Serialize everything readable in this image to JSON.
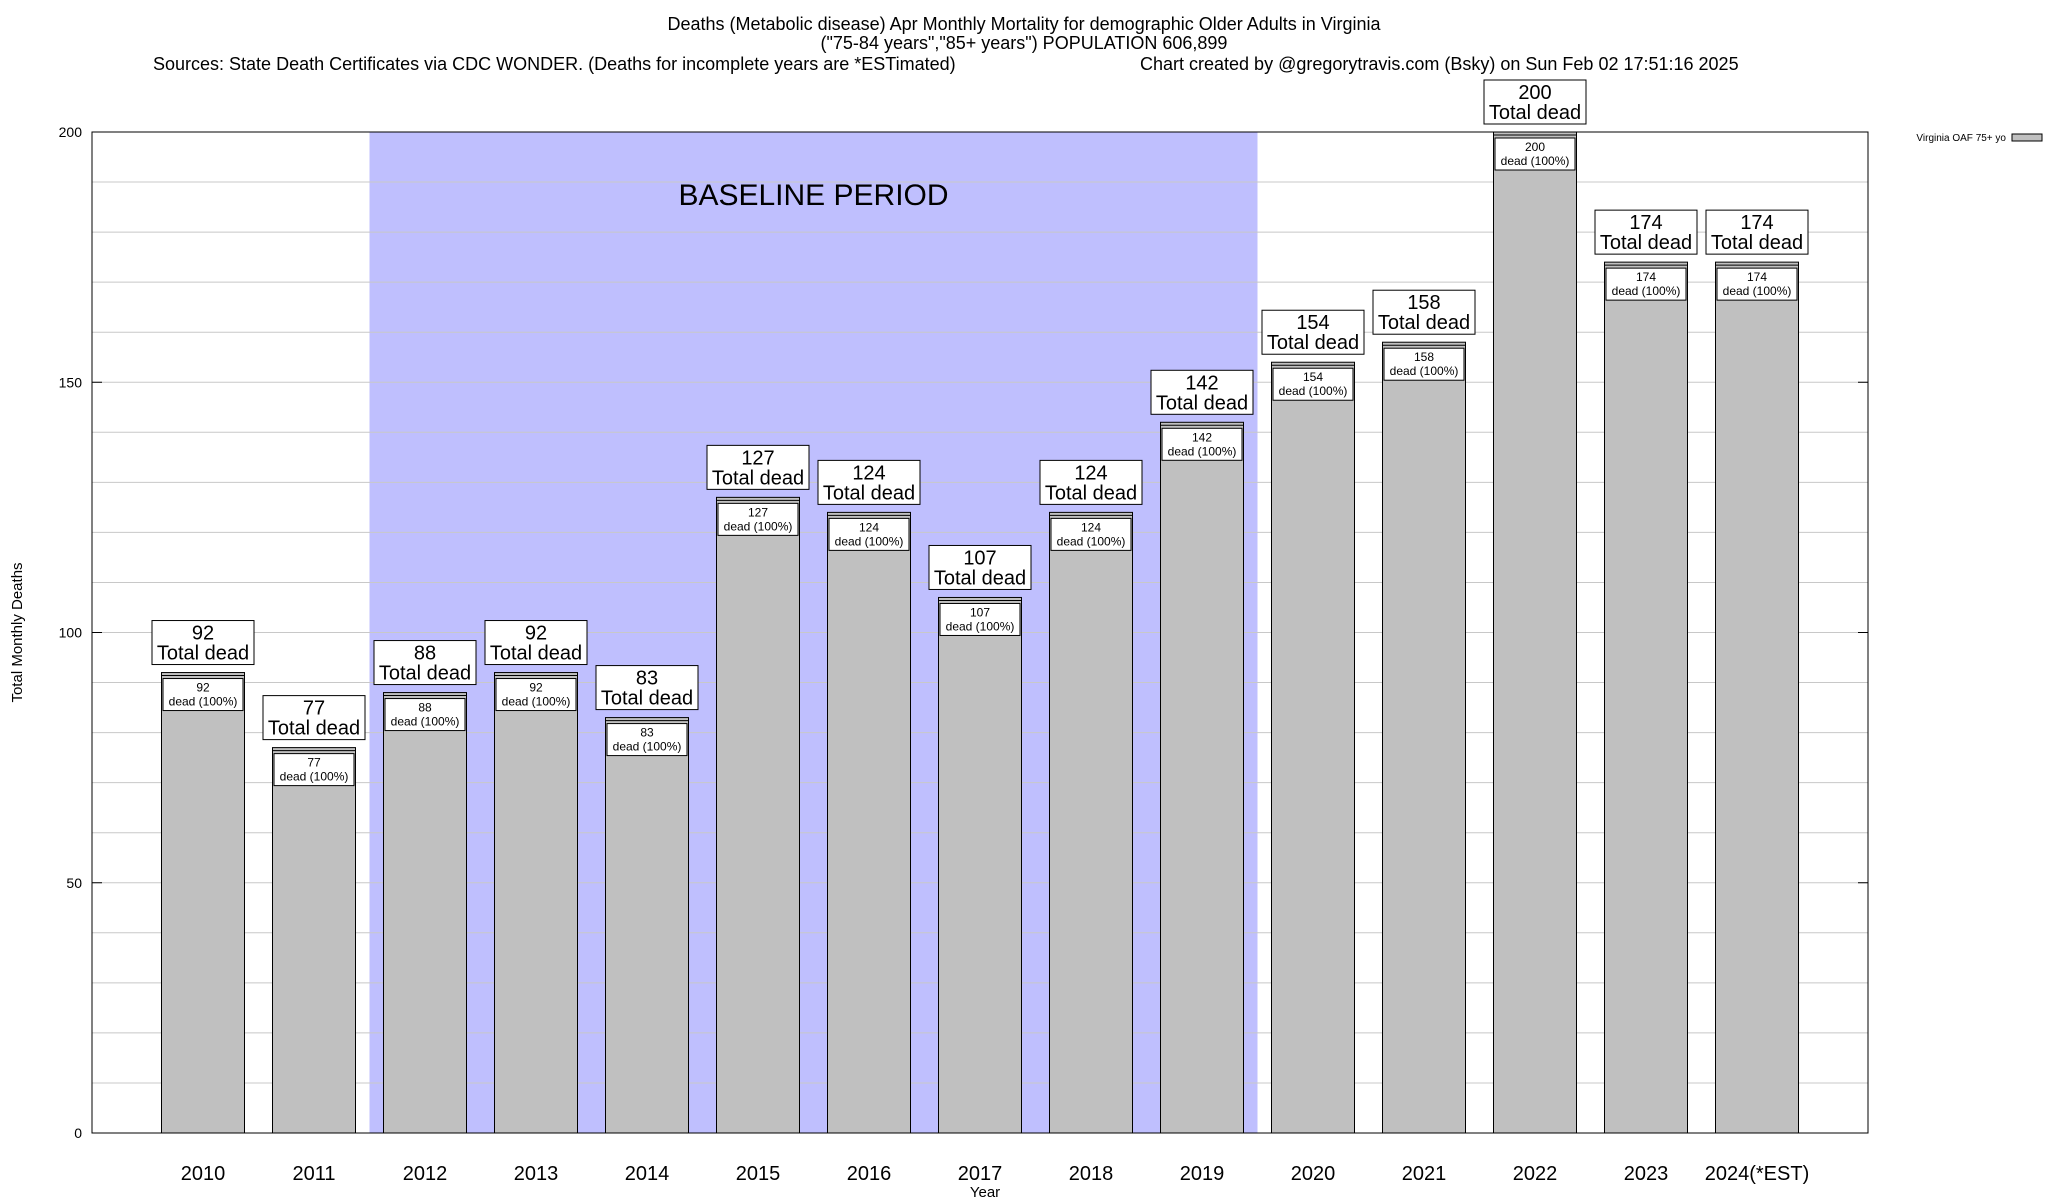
{
  "header": {
    "title_line1": "Deaths (Metabolic disease) Apr Monthly Mortality for demographic Older Adults in Virginia",
    "title_line2": "(\"75-84 years\",\"85+ years\") POPULATION 606,899",
    "sources": "Sources: State Death Certificates via CDC WONDER. (Deaths for incomplete years are *ESTimated)",
    "credit": "Chart created by @gregorytravis.com (Bsky) on Sun Feb 02 17:51:16 2025"
  },
  "chart_data": {
    "type": "bar",
    "xlabel": "Year",
    "ylabel": "Total Monthly Deaths",
    "ylim": [
      0,
      200
    ],
    "yticks": [
      0,
      50,
      100,
      150,
      200
    ],
    "grid": true,
    "legend": {
      "label": "Virginia OAF 75+ yo",
      "placement": "top-right-outside"
    },
    "categories": [
      "2010",
      "2011",
      "2012",
      "2013",
      "2014",
      "2015",
      "2016",
      "2017",
      "2018",
      "2019",
      "2020",
      "2021",
      "2022",
      "2023",
      "2024(*EST)"
    ],
    "series": [
      {
        "name": "Virginia OAF 75+ yo",
        "values": [
          92,
          77,
          88,
          92,
          83,
          127,
          124,
          107,
          124,
          142,
          154,
          158,
          200,
          174,
          174
        ]
      }
    ],
    "total_label": "Total dead",
    "bar_label": "dead (100%)",
    "baseline": {
      "label": "BASELINE PERIOD",
      "start": "2012",
      "end": "2019"
    },
    "colors": {
      "bar": "#c0c0c0",
      "baseline": "#bfbffe",
      "grid": "#c8c8c8"
    }
  }
}
